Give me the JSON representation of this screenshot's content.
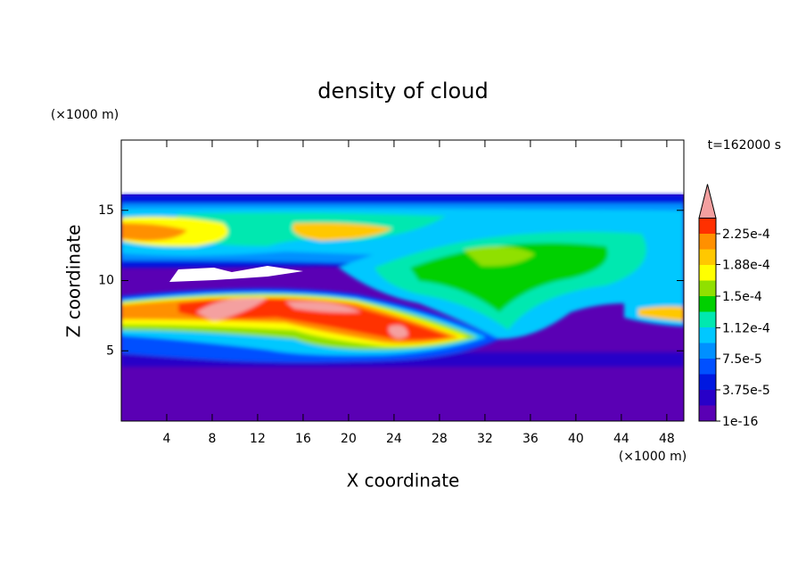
{
  "chart_data": {
    "type": "contour",
    "title": "density of cloud",
    "x_label": "X coordinate",
    "y_label": "Z coordinate",
    "x_unit": "(×1000 m)",
    "y_unit": "(×1000 m)",
    "time_label": "t=162000 s",
    "xlim": [
      0,
      49.5
    ],
    "ylim": [
      0,
      20
    ],
    "xticks": [
      4,
      8,
      12,
      16,
      20,
      24,
      28,
      32,
      36,
      40,
      44,
      48
    ],
    "yticks": [
      5,
      10,
      15
    ],
    "levels": [
      1e-16,
      1.875e-05,
      3.75e-05,
      5.625e-05,
      7.5e-05,
      9.375e-05,
      0.0001125,
      0.00013125,
      0.00015,
      0.00016875,
      0.0001875,
      0.00020625,
      0.000225
    ],
    "colors": [
      "#5a00b4",
      "#2800c8",
      "#0018e0",
      "#0050ff",
      "#0090ff",
      "#00c8ff",
      "#00e8b0",
      "#00d000",
      "#90e000",
      "#ffff00",
      "#ffc800",
      "#ff9000",
      "#ff3000"
    ],
    "extend_color": "#f4a0a0",
    "colorbar_ticks": [
      {
        "value": 1e-16,
        "label": "1e-16"
      },
      {
        "value": 3.75e-05,
        "label": "3.75e-5"
      },
      {
        "value": 7.5e-05,
        "label": "7.5e-5"
      },
      {
        "value": 0.000112,
        "label": "1.12e-4"
      },
      {
        "value": 0.00015,
        "label": "1.5e-4"
      },
      {
        "value": 0.000188,
        "label": "1.88e-4"
      },
      {
        "value": 0.000225,
        "label": "2.25e-4"
      }
    ]
  }
}
